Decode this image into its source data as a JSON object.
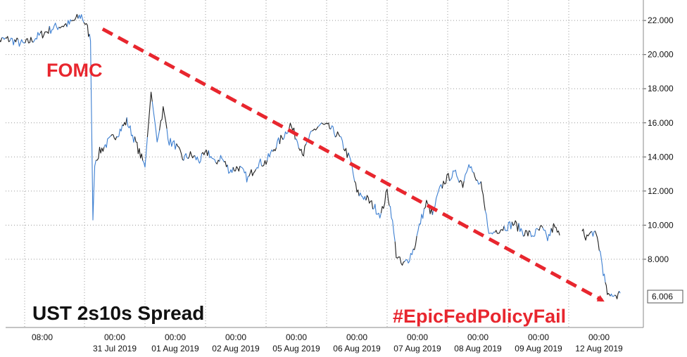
{
  "chart_data": {
    "type": "line",
    "title": "UST 2s10s Spread",
    "y_axis_side": "right",
    "ylim": [
      4.0,
      23.2
    ],
    "y_ticks": [
      8,
      10,
      12,
      14,
      16,
      18,
      20,
      22
    ],
    "y_tick_labels": [
      "8.000",
      "10.000",
      "12.000",
      "14.000",
      "16.000",
      "18.000",
      "20.000",
      "22.000"
    ],
    "x_tick_labels": [
      {
        "time": "08:00",
        "date": ""
      },
      {
        "time": "00:00",
        "date": "31 Jul 2019"
      },
      {
        "time": "00:00",
        "date": "01 Aug 2019"
      },
      {
        "time": "00:00",
        "date": "02 Aug 2019"
      },
      {
        "time": "00:00",
        "date": "05 Aug 2019"
      },
      {
        "time": "00:00",
        "date": "06 Aug 2019"
      },
      {
        "time": "00:00",
        "date": "07 Aug 2019"
      },
      {
        "time": "00:00",
        "date": "08 Aug 2019"
      },
      {
        "time": "00:00",
        "date": "09 Aug 2019"
      },
      {
        "time": "00:00",
        "date": "12 Aug 2019"
      }
    ],
    "grid": "dotted",
    "last_value": 6.006,
    "last_value_label": "6.006",
    "annotations": {
      "event_label": "FOMC",
      "hashtag": "#EpicFedPolicyFail",
      "trend_arrow": {
        "from": [
          0.3,
          21.5
        ],
        "to": [
          8.55,
          5.6
        ]
      }
    },
    "series": [
      {
        "color": "#1f1f1f",
        "segments": [
          [
            [
              -1.5,
              20.8
            ],
            [
              -1.25,
              20.9
            ],
            [
              -1.0,
              20.6
            ],
            [
              -0.75,
              21.1
            ],
            [
              -0.5,
              21.6
            ],
            [
              -0.25,
              21.8
            ],
            [
              -0.05,
              22.3
            ],
            [
              0.05,
              21.5
            ],
            [
              0.1,
              20.8
            ],
            [
              0.14,
              10.3
            ],
            [
              0.17,
              13.7
            ],
            [
              0.25,
              14.3
            ],
            [
              0.4,
              14.9
            ],
            [
              0.55,
              15.4
            ],
            [
              0.7,
              16.1
            ],
            [
              0.85,
              14.8
            ],
            [
              1.0,
              13.4
            ],
            [
              1.1,
              17.8
            ],
            [
              1.2,
              15.0
            ],
            [
              1.3,
              16.8
            ],
            [
              1.4,
              14.9
            ],
            [
              1.5,
              14.7
            ],
            [
              1.62,
              13.9
            ],
            [
              1.75,
              14.1
            ],
            [
              1.9,
              13.8
            ],
            [
              2.05,
              14.3
            ],
            [
              2.15,
              13.6
            ],
            [
              2.25,
              14.0
            ],
            [
              2.4,
              13.2
            ],
            [
              2.55,
              13.4
            ],
            [
              2.7,
              12.7
            ],
            [
              2.85,
              13.6
            ],
            [
              3.0,
              13.7
            ],
            [
              3.15,
              14.6
            ],
            [
              3.3,
              15.3
            ],
            [
              3.4,
              15.9
            ],
            [
              3.5,
              15.1
            ],
            [
              3.62,
              14.2
            ],
            [
              3.7,
              15.0
            ],
            [
              3.8,
              15.6
            ],
            [
              3.9,
              15.9
            ],
            [
              4.05,
              15.7
            ],
            [
              4.2,
              15.2
            ],
            [
              4.3,
              14.5
            ],
            [
              4.4,
              13.7
            ],
            [
              4.5,
              11.9
            ],
            [
              4.65,
              11.6
            ],
            [
              4.8,
              11.0
            ],
            [
              4.9,
              10.6
            ],
            [
              5.0,
              12.0
            ],
            [
              5.07,
              10.7
            ],
            [
              5.15,
              8.3
            ],
            [
              5.25,
              7.6
            ],
            [
              5.35,
              8.0
            ],
            [
              5.45,
              8.7
            ],
            [
              5.55,
              10.2
            ],
            [
              5.65,
              11.3
            ],
            [
              5.75,
              10.6
            ],
            [
              5.85,
              11.9
            ],
            [
              5.95,
              12.6
            ],
            [
              6.05,
              12.9
            ],
            [
              6.15,
              13.0
            ],
            [
              6.25,
              12.4
            ],
            [
              6.35,
              13.8
            ],
            [
              6.45,
              12.7
            ],
            [
              6.55,
              12.3
            ],
            [
              6.62,
              10.8
            ],
            [
              6.7,
              9.4
            ],
            [
              6.8,
              9.7
            ],
            [
              6.95,
              9.9
            ],
            [
              7.1,
              10.1
            ],
            [
              7.25,
              9.6
            ],
            [
              7.4,
              9.4
            ],
            [
              7.55,
              9.8
            ],
            [
              7.65,
              9.2
            ],
            [
              7.75,
              9.9
            ],
            [
              7.85,
              9.4
            ]
          ],
          [
            [
              8.22,
              9.6
            ],
            [
              8.3,
              9.3
            ],
            [
              8.4,
              9.6
            ],
            [
              8.47,
              9.2
            ],
            [
              8.52,
              8.4
            ],
            [
              8.57,
              7.3
            ],
            [
              8.62,
              6.2
            ],
            [
              8.67,
              5.7
            ],
            [
              8.72,
              6.0
            ],
            [
              8.78,
              5.9
            ],
            [
              8.85,
              6.006
            ]
          ]
        ]
      }
    ]
  }
}
